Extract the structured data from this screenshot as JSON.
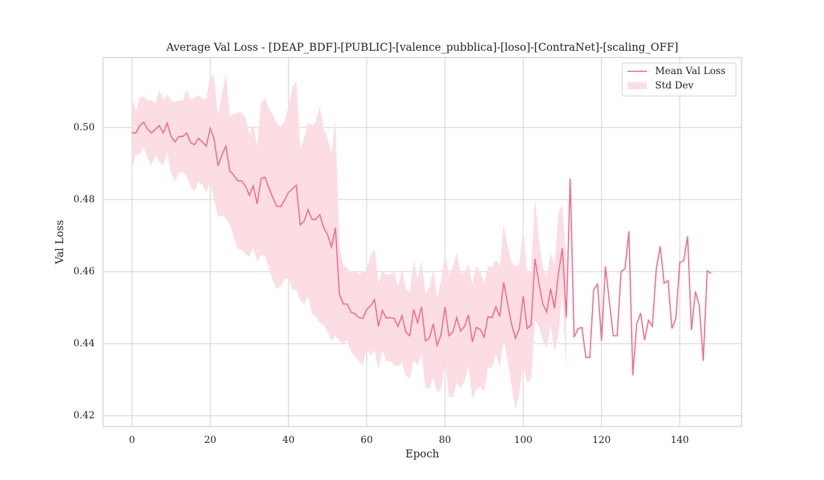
{
  "chart_data": {
    "type": "line",
    "title": "Average Val Loss - [DEAP_BDF]-[PUBLIC]-[valence_pubblica]-[loso]-[ContraNet]-[scaling_OFF]",
    "xlabel": "Epoch",
    "ylabel": "Val Loss",
    "x": [
      0,
      1,
      2,
      3,
      4,
      5,
      6,
      7,
      8,
      9,
      10,
      11,
      12,
      13,
      14,
      15,
      16,
      17,
      18,
      19,
      20,
      21,
      22,
      23,
      24,
      25,
      26,
      27,
      28,
      29,
      30,
      31,
      32,
      33,
      34,
      35,
      36,
      37,
      38,
      39,
      40,
      41,
      42,
      43,
      44,
      45,
      46,
      47,
      48,
      49,
      50,
      51,
      52,
      53,
      54,
      55,
      56,
      57,
      58,
      59,
      60,
      61,
      62,
      63,
      64,
      65,
      66,
      67,
      68,
      69,
      70,
      71,
      72,
      73,
      74,
      75,
      76,
      77,
      78,
      79,
      80,
      81,
      82,
      83,
      84,
      85,
      86,
      87,
      88,
      89,
      90,
      91,
      92,
      93,
      94,
      95,
      96,
      97,
      98,
      99,
      100,
      101,
      102,
      103,
      104,
      105,
      106,
      107,
      108,
      109,
      110,
      111,
      112,
      113,
      114,
      115,
      116,
      117,
      118,
      119,
      120,
      121,
      122,
      123,
      124,
      125,
      126,
      127,
      128,
      129,
      130,
      131,
      132,
      133,
      134,
      135,
      136,
      137,
      138,
      139,
      140,
      141,
      142,
      143,
      144,
      145,
      146,
      147,
      148
    ],
    "series": [
      {
        "name": "Mean Val Loss",
        "color": "#f0708a",
        "values": [
          0.4985,
          0.4985,
          0.5005,
          0.5015,
          0.4995,
          0.4985,
          0.4995,
          0.5005,
          0.4985,
          0.5012,
          0.4975,
          0.496,
          0.4975,
          0.4975,
          0.4985,
          0.4958,
          0.4952,
          0.497,
          0.496,
          0.4948,
          0.4998,
          0.4968,
          0.4893,
          0.4925,
          0.4948,
          0.488,
          0.4868,
          0.4852,
          0.4852,
          0.4838,
          0.4812,
          0.4838,
          0.4788,
          0.4858,
          0.4862,
          0.4832,
          0.4805,
          0.4782,
          0.478,
          0.4798,
          0.482,
          0.483,
          0.484,
          0.473,
          0.474,
          0.4772,
          0.4745,
          0.4745,
          0.4758,
          0.4722,
          0.4702,
          0.4668,
          0.4722,
          0.4538,
          0.451,
          0.451,
          0.4487,
          0.4483,
          0.4472,
          0.447,
          0.4495,
          0.4505,
          0.4522,
          0.4448,
          0.4492,
          0.4471,
          0.4472,
          0.447,
          0.4448,
          0.4478,
          0.4432,
          0.4422,
          0.4495,
          0.4458,
          0.4502,
          0.4408,
          0.4415,
          0.4455,
          0.4395,
          0.4425,
          0.4502,
          0.4422,
          0.4432,
          0.4472,
          0.4435,
          0.4448,
          0.448,
          0.4405,
          0.4445,
          0.444,
          0.4418,
          0.4475,
          0.4472,
          0.4502,
          0.4475,
          0.457,
          0.4512,
          0.4455,
          0.4415,
          0.4442,
          0.4532,
          0.4442,
          0.4452,
          0.4635,
          0.4568,
          0.451,
          0.4488,
          0.4552,
          0.4498,
          0.4595,
          0.4665,
          0.4472,
          0.4858,
          0.4418,
          0.4442,
          0.4445,
          0.4362,
          0.4362,
          0.455,
          0.4565,
          0.4408,
          0.4615,
          0.4518,
          0.4422,
          0.4422,
          0.46,
          0.4608,
          0.4712,
          0.4312,
          0.4455,
          0.4485,
          0.441,
          0.4465,
          0.4448,
          0.4608,
          0.467,
          0.4568,
          0.4575,
          0.4442,
          0.447,
          0.4625,
          0.463,
          0.4698,
          0.4438,
          0.4545,
          0.4505,
          0.4352,
          0.4602,
          0.4595
        ]
      }
    ],
    "band": {
      "name": "Std Dev",
      "color": "#fcdde4",
      "values": [
        0.01,
        0.006,
        0.008,
        0.007,
        0.008,
        0.009,
        0.007,
        0.01,
        0.009,
        0.008,
        0.01,
        0.011,
        0.01,
        0.01,
        0.012,
        0.012,
        0.013,
        0.012,
        0.012,
        0.013,
        0.015,
        0.017,
        0.014,
        0.017,
        0.02,
        0.015,
        0.017,
        0.019,
        0.019,
        0.019,
        0.017,
        0.017,
        0.016,
        0.021,
        0.022,
        0.022,
        0.023,
        0.023,
        0.022,
        0.022,
        0.024,
        0.028,
        0.029,
        0.021,
        0.023,
        0.024,
        0.026,
        0.027,
        0.03,
        0.027,
        0.027,
        0.026,
        0.03,
        0.013,
        0.011,
        0.01,
        0.011,
        0.012,
        0.012,
        0.013,
        0.011,
        0.014,
        0.014,
        0.012,
        0.011,
        0.012,
        0.012,
        0.013,
        0.011,
        0.013,
        0.012,
        0.012,
        0.014,
        0.012,
        0.013,
        0.013,
        0.014,
        0.015,
        0.013,
        0.015,
        0.015,
        0.017,
        0.018,
        0.018,
        0.016,
        0.015,
        0.014,
        0.016,
        0.017,
        0.016,
        0.015,
        0.014,
        0.014,
        0.013,
        0.014,
        0.016,
        0.016,
        0.017,
        0.02,
        0.018,
        0.019,
        0.015,
        0.015,
        0.017,
        0.012,
        0.01,
        0.01,
        0.01,
        0.012,
        0.017,
        0.012,
        0.015,
        null,
        null,
        null,
        null,
        null,
        null,
        null,
        null,
        null,
        null,
        null,
        null,
        null,
        null,
        null,
        null,
        null,
        null,
        null,
        null,
        null,
        null,
        null,
        null,
        null,
        null,
        null,
        null,
        null,
        null,
        null,
        null,
        null,
        null,
        null,
        null,
        null
      ]
    },
    "xlim": [
      -7.4,
      155.8
    ],
    "ylim": [
      0.417,
      0.5194
    ],
    "xticks": [
      0,
      20,
      40,
      60,
      80,
      100,
      120,
      140
    ],
    "yticks": [
      0.42,
      0.44,
      0.46,
      0.48,
      {
        "value": 0.5,
        "label": "0.50"
      }
    ],
    "grid": true,
    "legend": "upper right"
  }
}
